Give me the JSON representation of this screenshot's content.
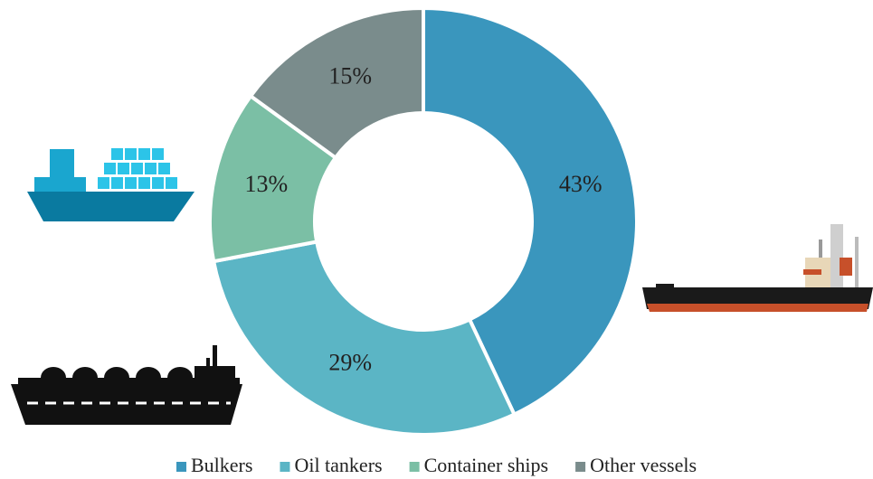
{
  "chart_data": {
    "type": "donut",
    "categories": [
      "Bulkers",
      "Oil tankers",
      "Container ships",
      "Other vessels"
    ],
    "values": [
      43,
      29,
      13,
      15
    ],
    "value_labels": [
      "43%",
      "29%",
      "13%",
      "15%"
    ],
    "colors": [
      "#3a96bd",
      "#5bb5c5",
      "#7bbfa5",
      "#7a8c8c"
    ]
  }
}
